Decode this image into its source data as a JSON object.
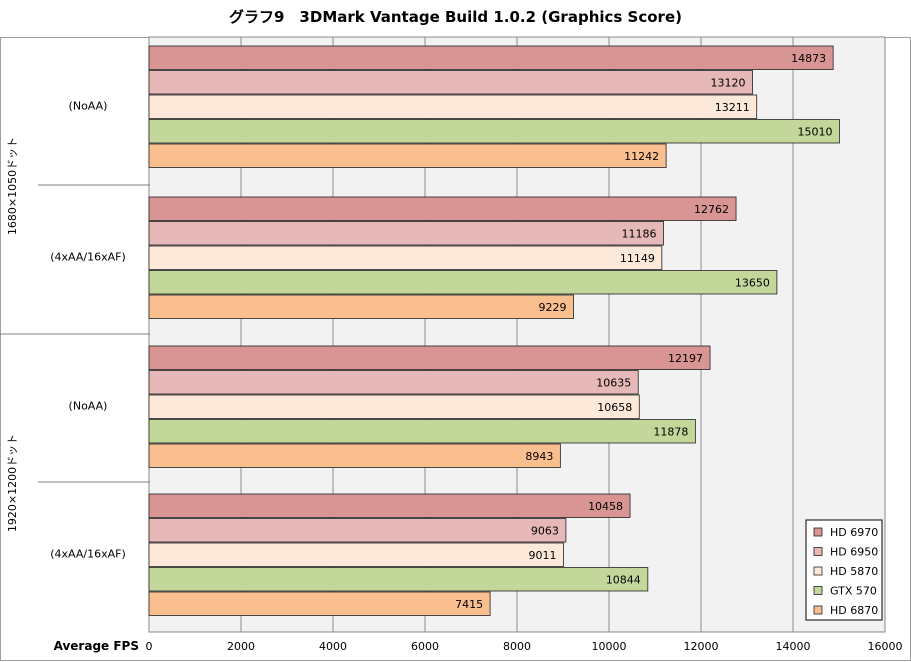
{
  "chart_data": {
    "type": "bar",
    "orientation": "horizontal",
    "title": "グラフ9　3DMark Vantage Build 1.0.2 (Graphics Score)",
    "xlabel": "Average FPS",
    "xlim": [
      0,
      16000
    ],
    "x_ticks": [
      "0",
      "2000",
      "4000",
      "6000",
      "8000",
      "10000",
      "12000",
      "14000",
      "16000"
    ],
    "grid": "vertical",
    "legend_position": "bottom-right",
    "resolutions": [
      "1680×1050ドット",
      "1920×1200ドット"
    ],
    "categories": [
      "(NoAA)",
      "(4xAA/16xAF)",
      "(NoAA)",
      "(4xAA/16xAF)"
    ],
    "series": [
      {
        "name": "HD 6970",
        "color": "#d99594",
        "values": [
          14873,
          12762,
          12197,
          10458
        ]
      },
      {
        "name": "HD 6950",
        "color": "#e6b8b7",
        "values": [
          13120,
          11186,
          10635,
          9063
        ]
      },
      {
        "name": "HD 5870",
        "color": "#fde9d9",
        "values": [
          13211,
          11149,
          10658,
          9011
        ]
      },
      {
        "name": "GTX 570",
        "color": "#c4d79b",
        "values": [
          15010,
          13650,
          11878,
          10844
        ]
      },
      {
        "name": "HD 6870",
        "color": "#fabf8f",
        "values": [
          11242,
          9229,
          8943,
          7415
        ]
      }
    ]
  }
}
